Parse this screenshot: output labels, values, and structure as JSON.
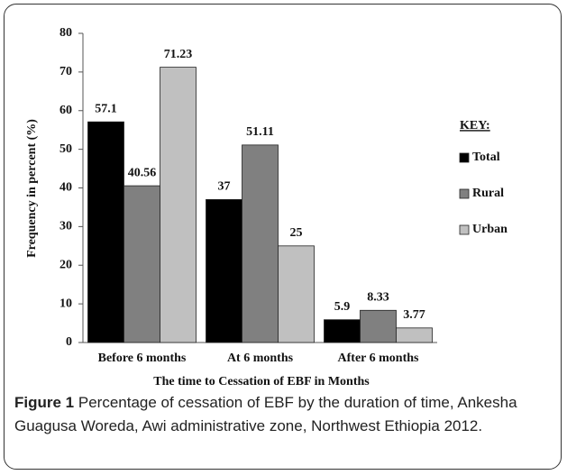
{
  "chart_data": {
    "type": "bar",
    "y_label": "Frequency in percent (%)",
    "x_label": "The time to Cessation of EBF in Months",
    "legend_title": "KEY:",
    "legend": "right",
    "categories": [
      "Before 6 months",
      "At 6 months",
      "After 6 months"
    ],
    "series": [
      {
        "name": "Total",
        "color": "#000000",
        "values": [
          57.1,
          37,
          5.9
        ]
      },
      {
        "name": "Rural",
        "color": "#808080",
        "values": [
          40.56,
          51.11,
          8.33
        ]
      },
      {
        "name": "Urban",
        "color": "#c0c0c0",
        "values": [
          71.23,
          25,
          3.77
        ]
      }
    ],
    "ylim": [
      0,
      80
    ],
    "yticks": [
      0,
      10,
      20,
      30,
      40,
      50,
      60,
      70,
      80
    ],
    "grid": false,
    "caption_label": "Figure 1",
    "caption": "Percentage of cessation of EBF by the duration of time, Ankesha Guagusa Woreda, Awi administrative zone, Northwest Ethiopia 2012."
  }
}
